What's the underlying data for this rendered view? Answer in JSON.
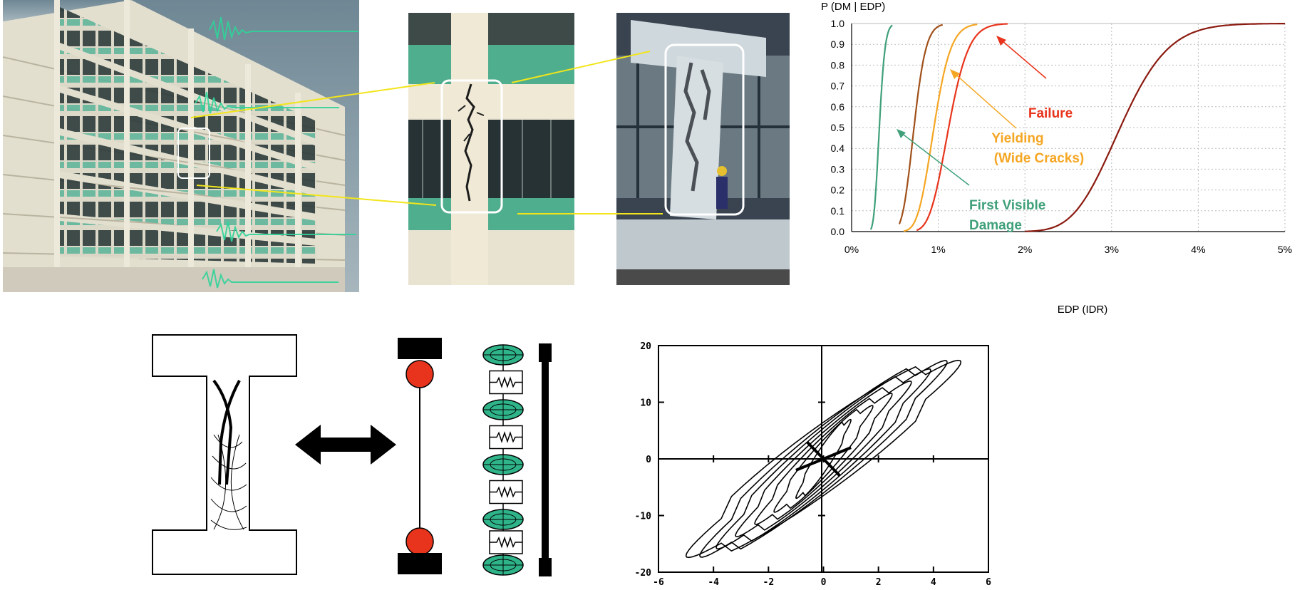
{
  "fragility": {
    "y_title": "P (DM | EDP)",
    "x_title": "EDP (IDR)",
    "y_ticks": [
      "0.0",
      "0.1",
      "0.2",
      "0.3",
      "0.4",
      "0.5",
      "0.6",
      "0.7",
      "0.8",
      "0.9",
      "1.0"
    ],
    "x_ticks": [
      "0%",
      "1%",
      "2%",
      "3%",
      "4%",
      "5%"
    ],
    "labels": {
      "failure": "Failure",
      "yielding_1": "Yielding",
      "yielding_2": "(Wide Cracks)",
      "first_1": "First Visible",
      "first_2": "Damage"
    },
    "colors": {
      "first_visible": "#3fa07a",
      "cracks": "#a0501a",
      "yielding": "#f5a623",
      "failure": "#e8341c",
      "collapse": "#8b1a10",
      "grid": "#bbbbbb"
    }
  },
  "hysteresis": {
    "y_ticks": [
      "20",
      "10",
      "0",
      "-10",
      "-20"
    ],
    "x_ticks": [
      "-6",
      "-4",
      "-2",
      "0",
      "2",
      "4",
      "6"
    ]
  },
  "chart_data": [
    {
      "type": "line",
      "title": "",
      "ylabel": "P (DM | EDP)",
      "xlabel": "EDP (IDR)",
      "xlim": [
        0,
        5
      ],
      "ylim": [
        0,
        1
      ],
      "x_unit": "%",
      "series": [
        {
          "name": "First Visible Damage",
          "median": 0.32,
          "x": [
            0.22,
            0.28,
            0.32,
            0.36,
            0.42,
            0.47
          ],
          "y": [
            0.0,
            0.2,
            0.5,
            0.8,
            0.98,
            1.0
          ]
        },
        {
          "median": 0.72,
          "x": [
            0.55,
            0.65,
            0.72,
            0.8,
            0.92,
            1.05
          ],
          "y": [
            0.0,
            0.2,
            0.5,
            0.8,
            0.98,
            1.0
          ]
        },
        {
          "name": "Yielding (Wide Cracks)",
          "median": 0.95,
          "x": [
            0.6,
            0.82,
            0.95,
            1.08,
            1.3,
            1.45
          ],
          "y": [
            0.0,
            0.2,
            0.5,
            0.8,
            0.98,
            1.0
          ]
        },
        {
          "name": "Failure",
          "median": 1.12,
          "x": [
            0.75,
            0.98,
            1.12,
            1.28,
            1.6,
            1.8
          ],
          "y": [
            0.0,
            0.2,
            0.5,
            0.8,
            0.98,
            1.0
          ]
        },
        {
          "median": 3.1,
          "x": [
            2.0,
            2.65,
            3.1,
            3.55,
            4.4,
            5.0
          ],
          "y": [
            0.0,
            0.2,
            0.5,
            0.8,
            0.98,
            1.0
          ]
        }
      ]
    },
    {
      "type": "line",
      "title": "",
      "xlim": [
        -6,
        6
      ],
      "ylim": [
        -20,
        20
      ],
      "series": [
        {
          "x": [
            -5,
            -4,
            -3,
            -2,
            -1,
            0,
            1,
            2,
            3,
            4,
            5
          ],
          "y": [
            -15,
            -17,
            -17,
            -15,
            -10,
            0,
            10,
            15,
            17,
            17,
            15
          ]
        }
      ]
    }
  ]
}
